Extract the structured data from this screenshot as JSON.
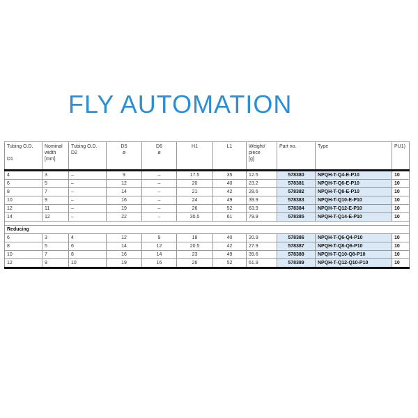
{
  "headers": [
    "Tubing O.D.\n\nD1",
    "Nominal width\n[mm]",
    "Tubing O.D.\nD2",
    "D5\nø",
    "D6\nø",
    "H1",
    "L1",
    "Weight/ piece\n[g]",
    "Part no.",
    "Type",
    "PU1)"
  ],
  "rows": [
    [
      "4",
      "3",
      "–",
      "9",
      "–",
      "17.5",
      "35",
      "12.5",
      "578380",
      "NPQH-T-Q4-E-P10",
      "10"
    ],
    [
      "6",
      "5",
      "–",
      "12",
      "–",
      "20",
      "40",
      "23.2",
      "578381",
      "NPQH-T-Q6-E-P10",
      "10"
    ],
    [
      "8",
      "7",
      "–",
      "14",
      "–",
      "21",
      "42",
      "28.6",
      "578382",
      "NPQH-T-Q8-E-P10",
      "10"
    ],
    [
      "10",
      "9",
      "–",
      "16",
      "–",
      "24",
      "49",
      "39.9",
      "578383",
      "NPQH-T-Q10-E-P10",
      "10"
    ],
    [
      "12",
      "11",
      "–",
      "19",
      "–",
      "26",
      "52",
      "63.9",
      "578384",
      "NPQH-T-Q12-E-P10",
      "10"
    ],
    [
      "14",
      "12",
      "–",
      "22",
      "–",
      "30.5",
      "61",
      "79.9",
      "578385",
      "NPQH-T-Q14-E-P10",
      "10"
    ]
  ],
  "section_label": "Reducing",
  "reducing_rows": [
    [
      "6",
      "3",
      "4",
      "12",
      "9",
      "18",
      "40",
      "20.9",
      "578386",
      "NPQH-T-Q6-Q4-P10",
      "10"
    ],
    [
      "8",
      "5",
      "6",
      "14",
      "12",
      "20.5",
      "42",
      "27.9",
      "578387",
      "NPQH-T-Q8-Q6-P10",
      "10"
    ],
    [
      "10",
      "7",
      "8",
      "16",
      "14",
      "23",
      "49",
      "39.6",
      "578388",
      "NPQH-T-Q10-Q8-P10",
      "10"
    ],
    [
      "12",
      "9",
      "10",
      "19",
      "16",
      "26",
      "52",
      "61.9",
      "578389",
      "NPQH-T-Q12-Q10-P10",
      "10"
    ]
  ],
  "watermark": "FLY AUTOMATION"
}
